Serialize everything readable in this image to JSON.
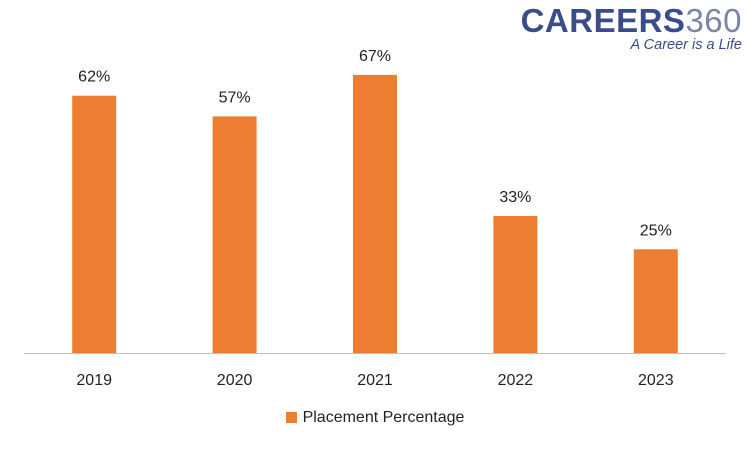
{
  "logo": {
    "main_text": "CAREERS",
    "number": "360",
    "tagline": "A Career is a Life"
  },
  "chart_data": {
    "type": "bar",
    "categories": [
      "2019",
      "2020",
      "2021",
      "2022",
      "2023"
    ],
    "series": [
      {
        "name": "Placement Percentage",
        "values": [
          62,
          57,
          67,
          33,
          25
        ],
        "labels": [
          "62%",
          "57%",
          "67%",
          "33%",
          "25%"
        ],
        "color": "#ed7d31"
      }
    ],
    "ylim": [
      0,
      70
    ],
    "grid": false,
    "legend_position": "bottom"
  }
}
